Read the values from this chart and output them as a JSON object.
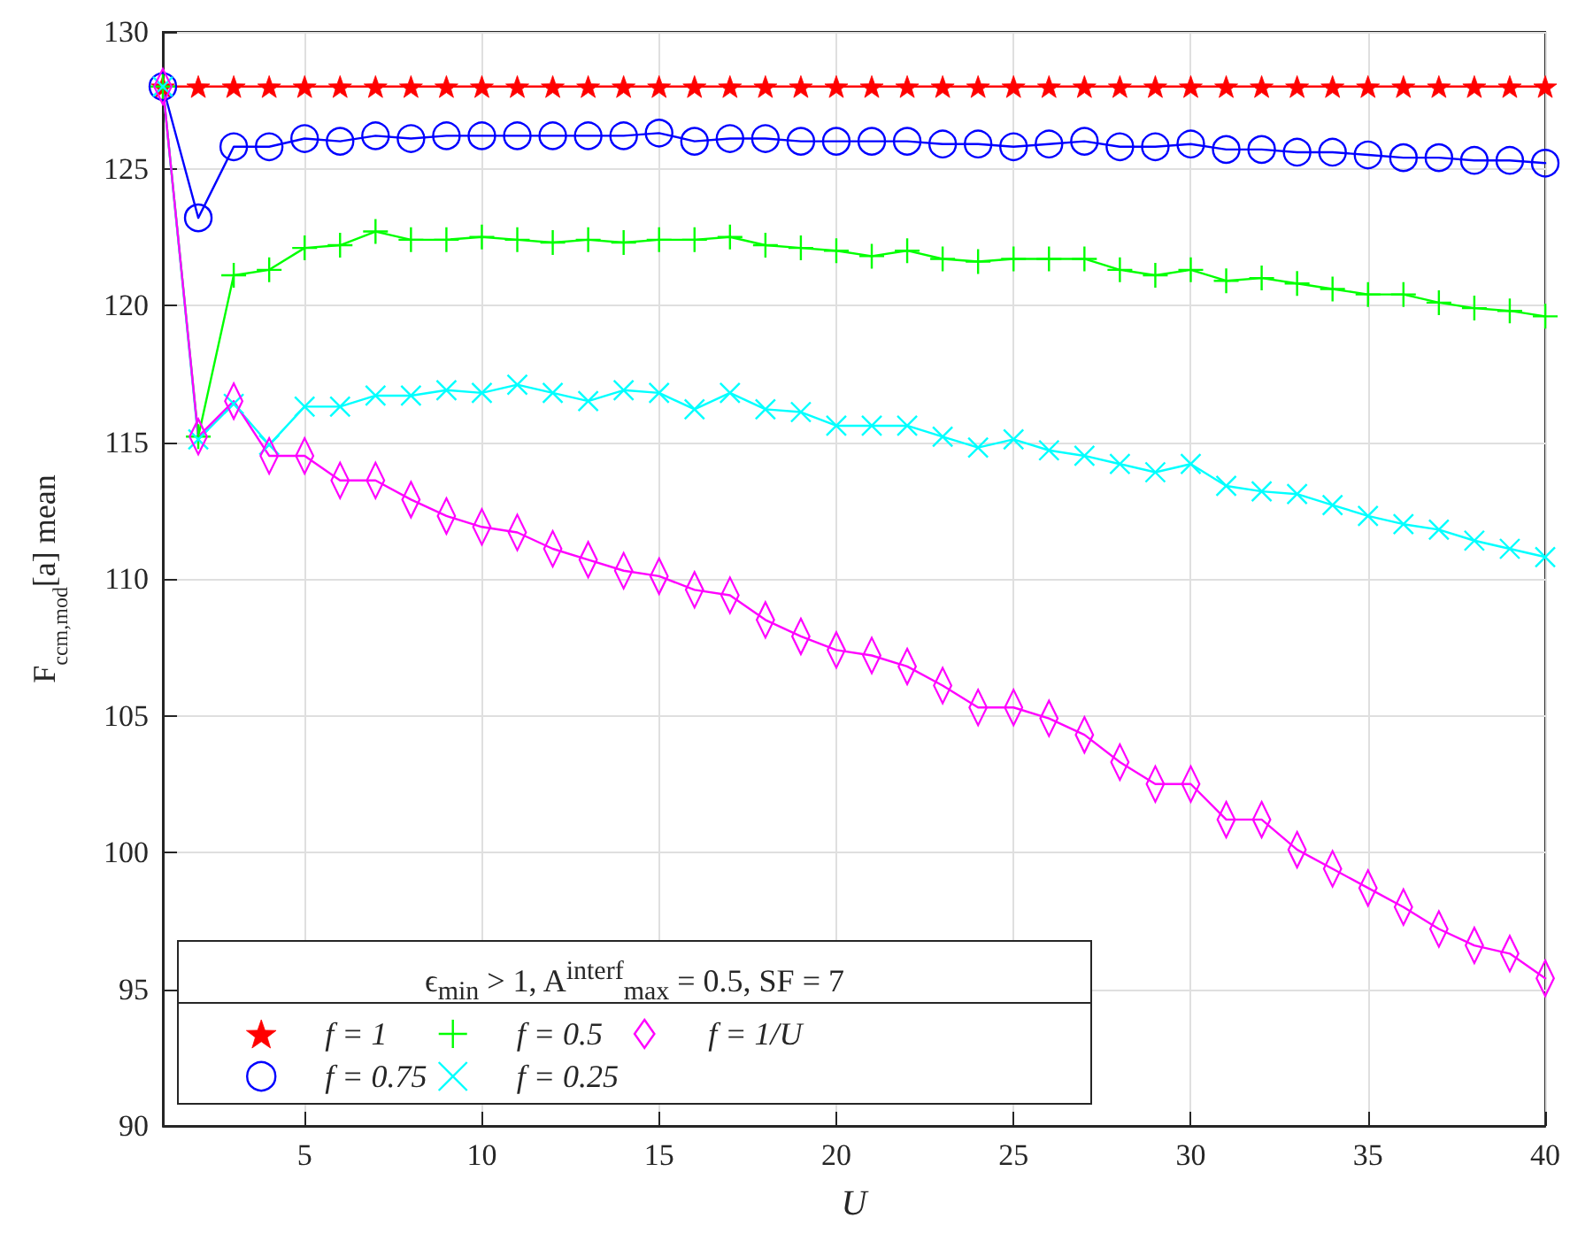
{
  "chart_data": {
    "type": "line",
    "xlabel": "U",
    "ylabel": "F$_{ccm,mod}$[a] mean",
    "legend_title": "ϵ$_{min}$ > 1, A$^{interf}$$_{max}$ = 0.5, SF = 7",
    "x": [
      1,
      2,
      3,
      4,
      5,
      6,
      7,
      8,
      9,
      10,
      11,
      12,
      13,
      14,
      15,
      16,
      17,
      18,
      19,
      20,
      21,
      22,
      23,
      24,
      25,
      26,
      27,
      28,
      29,
      30,
      31,
      32,
      33,
      34,
      35,
      36,
      37,
      38,
      39,
      40
    ],
    "xlim": [
      1,
      40
    ],
    "xticks": [
      5,
      10,
      15,
      20,
      25,
      30,
      35,
      40
    ],
    "ylim": [
      90,
      130
    ],
    "yticks": [
      90,
      95,
      100,
      105,
      110,
      115,
      120,
      125,
      130
    ],
    "grid": true,
    "legend": "bottom left",
    "line_style": "solid",
    "series": [
      {
        "name": "f = 1",
        "color": "#ff0000",
        "marker": "star",
        "values": [
          128,
          128,
          128,
          128,
          128,
          128,
          128,
          128,
          128,
          128,
          128,
          128,
          128,
          128,
          128,
          128,
          128,
          128,
          128,
          128,
          128,
          128,
          128,
          128,
          128,
          128,
          128,
          128,
          128,
          128,
          128,
          128,
          128,
          128,
          128,
          128,
          128,
          128,
          128,
          128
        ]
      },
      {
        "name": "f = 0.75",
        "color": "#0000ff",
        "marker": "circle",
        "values": [
          128,
          123.2,
          125.8,
          125.8,
          126.1,
          126.0,
          126.2,
          126.1,
          126.2,
          126.2,
          126.2,
          126.2,
          126.2,
          126.2,
          126.3,
          126.0,
          126.1,
          126.1,
          126.0,
          126.0,
          126.0,
          126.0,
          125.9,
          125.9,
          125.8,
          125.9,
          126.0,
          125.8,
          125.8,
          125.9,
          125.7,
          125.7,
          125.6,
          125.6,
          125.5,
          125.4,
          125.4,
          125.3,
          125.3,
          125.2
        ]
      },
      {
        "name": "f = 0.5",
        "color": "#00ff00",
        "marker": "cross",
        "values": [
          128,
          115.2,
          121.1,
          121.3,
          122.1,
          122.2,
          122.7,
          122.4,
          122.4,
          122.5,
          122.4,
          122.3,
          122.4,
          122.3,
          122.4,
          122.4,
          122.5,
          122.2,
          122.1,
          122.0,
          121.8,
          122.0,
          121.7,
          121.6,
          121.7,
          121.7,
          121.7,
          121.3,
          121.1,
          121.3,
          120.9,
          121.0,
          120.8,
          120.6,
          120.4,
          120.4,
          120.1,
          119.9,
          119.8,
          119.6
        ]
      },
      {
        "name": "f = 0.25",
        "color": "#00ffff",
        "marker": "x",
        "values": [
          128,
          115.1,
          116.4,
          114.9,
          116.3,
          116.3,
          116.7,
          116.7,
          116.9,
          116.8,
          117.1,
          116.8,
          116.5,
          116.9,
          116.8,
          116.2,
          116.8,
          116.2,
          116.1,
          115.6,
          115.6,
          115.6,
          115.2,
          114.8,
          115.1,
          114.7,
          114.5,
          114.2,
          113.9,
          114.2,
          113.4,
          113.2,
          113.1,
          112.7,
          112.3,
          112.0,
          111.8,
          111.4,
          111.1,
          110.8
        ]
      },
      {
        "name": "f = 1/U",
        "color": "#ff00ff",
        "marker": "diamond",
        "values": [
          128,
          115.2,
          116.5,
          114.5,
          114.5,
          113.6,
          113.6,
          112.9,
          112.3,
          111.9,
          111.7,
          111.1,
          110.7,
          110.3,
          110.1,
          109.6,
          109.4,
          108.5,
          107.9,
          107.4,
          107.2,
          106.8,
          106.1,
          105.3,
          105.3,
          104.9,
          104.3,
          103.3,
          102.5,
          102.5,
          101.2,
          101.2,
          100.1,
          99.4,
          98.7,
          98.0,
          97.2,
          96.6,
          96.3,
          95.4
        ]
      }
    ]
  }
}
